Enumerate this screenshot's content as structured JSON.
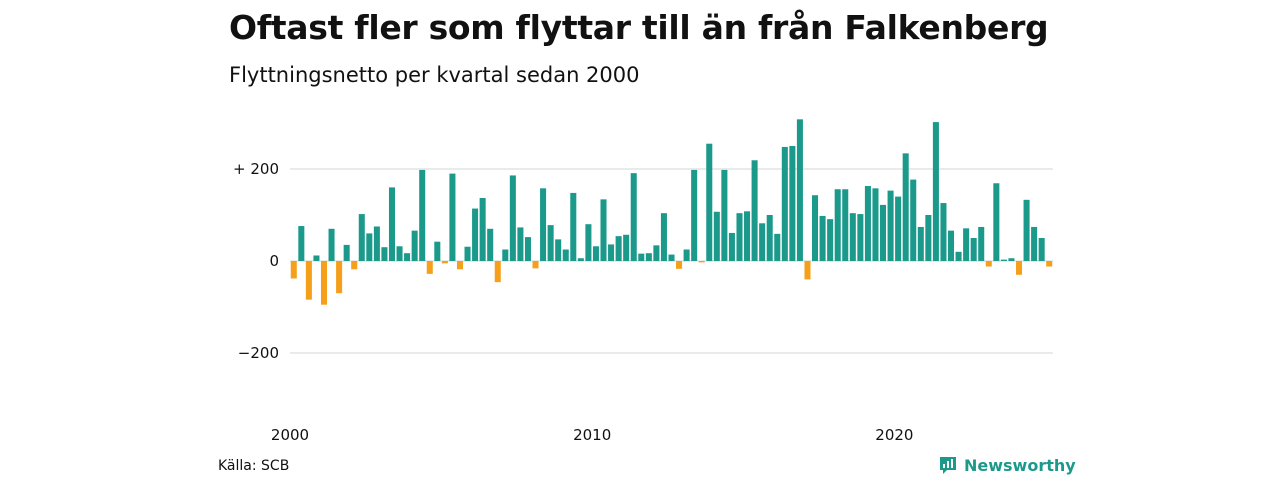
{
  "title": "Oftast fler som flyttar till än från Falkenberg",
  "subtitle": "Flyttningsnetto per kvartal sedan 2000",
  "source": "Källa: SCB",
  "brand": "Newsworthy",
  "colors": {
    "positive": "#1b9a8c",
    "negative": "#f59f1b",
    "grid": "#dddddd",
    "brand": "#1b9a8c"
  },
  "chart_data": {
    "type": "bar",
    "x_start": "2000 Q1",
    "x_ticks": [
      "2000",
      "2010",
      "2020"
    ],
    "y_ticks": [
      "+ 200",
      "0",
      "−200"
    ],
    "ylim": [
      -300,
      320
    ],
    "y_tick_values": [
      200,
      0,
      -200
    ],
    "values": [
      -38,
      76,
      -84,
      12,
      -95,
      70,
      -70,
      35,
      -18,
      102,
      60,
      75,
      30,
      160,
      32,
      17,
      66,
      198,
      -28,
      42,
      -5,
      190,
      -18,
      31,
      114,
      137,
      70,
      -46,
      25,
      186,
      73,
      52,
      -16,
      158,
      78,
      47,
      25,
      148,
      6,
      80,
      32,
      134,
      36,
      54,
      57,
      191,
      16,
      17,
      34,
      104,
      14,
      -17,
      25,
      198,
      -3,
      255,
      107,
      198,
      61,
      104,
      108,
      219,
      82,
      100,
      59,
      248,
      250,
      308,
      -40,
      143,
      98,
      91,
      156,
      156,
      104,
      102,
      163,
      158,
      122,
      153,
      140,
      234,
      177,
      74,
      100,
      302,
      126,
      66,
      20,
      71,
      50,
      74,
      -12,
      169,
      3,
      6,
      -30,
      133,
      74,
      50,
      -12
    ]
  }
}
